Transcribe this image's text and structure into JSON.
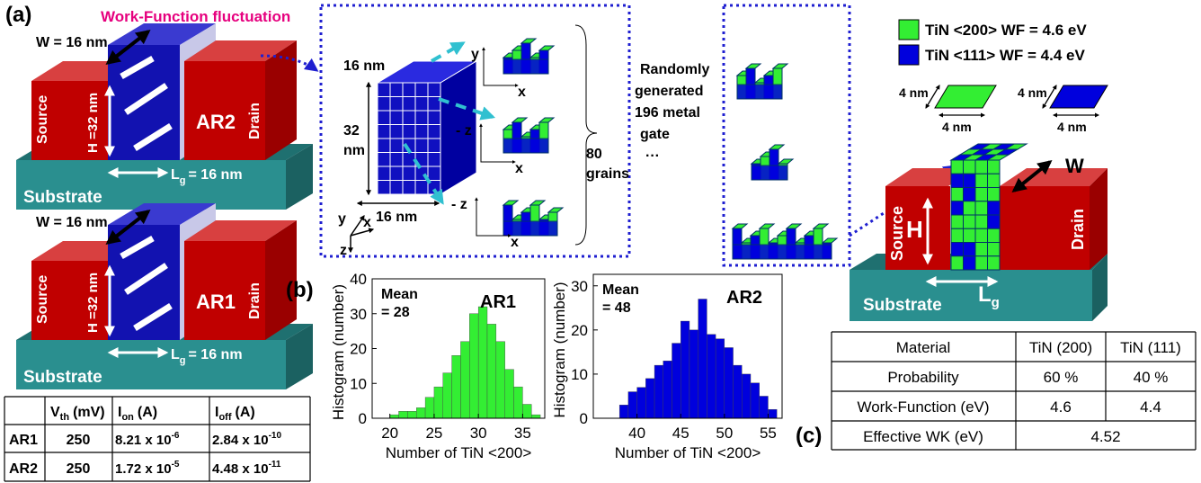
{
  "panel_a": {
    "label": "(a)",
    "title": "Work-Function fluctuation",
    "devices": [
      {
        "width": "W = 16 nm",
        "height": "H =32 nm",
        "source": "Source",
        "drain": "Drain",
        "name": "AR2",
        "substrate": "Substrate",
        "gate_length": {
          "symbol": "L",
          "subscript": "g",
          "text": "= 16 nm"
        }
      },
      {
        "width": "W = 16 nm",
        "height": "H =32 nm",
        "source": "Source",
        "drain": "Drain",
        "name": "AR1",
        "substrate": "Substrate",
        "gate_length": {
          "symbol": "L",
          "subscript": "g",
          "text": "= 16 nm"
        }
      }
    ],
    "table": {
      "header": [
        {
          "symbol": "V",
          "subscript": "th",
          "unit": "(mV)"
        },
        {
          "symbol": "I",
          "subscript": "on",
          "unit": "(A)"
        },
        {
          "symbol": "I",
          "subscript": "off",
          "unit": "(A)"
        }
      ],
      "rows": [
        {
          "name": "AR1",
          "vth": "250",
          "ion": {
            "base": "8.21 x 10",
            "exponent": "-6"
          },
          "ioff": {
            "base": "2.84 x 10",
            "exponent": "-10"
          }
        },
        {
          "name": "AR2",
          "vth": "250",
          "ion": {
            "base": "1.72 x 10",
            "exponent": "-5"
          },
          "ioff": {
            "base": "4.48 x 10",
            "exponent": "-11"
          }
        }
      ]
    }
  },
  "grain_model": {
    "width": "16 nm",
    "height": [
      "32",
      "nm"
    ],
    "depth": "16 nm",
    "axes": {
      "y": "y",
      "x": "x",
      "z": "z"
    },
    "grain_axes": [
      {
        "a": "y",
        "b": "x"
      },
      {
        "a": "- z",
        "b": "x"
      },
      {
        "a": "- z",
        "b": "x"
      }
    ],
    "grains": [
      "80",
      "grains"
    ],
    "description": [
      "Randomly",
      "generated",
      "196 metal",
      "gate"
    ],
    "ellipsis": "···"
  },
  "panel_b": {
    "label": "(b)"
  },
  "chart_data": [
    {
      "type": "histogram",
      "title": "AR1",
      "annotation": [
        "Mean",
        "= 28"
      ],
      "y_label": "Histogram (number)",
      "x_label": "Number of TiN <200>",
      "color": "#33ee33",
      "bins": [
        20,
        21,
        22,
        23,
        24,
        25,
        26,
        27,
        28,
        29,
        30,
        31,
        32,
        33,
        34,
        35,
        36,
        37
      ],
      "values": [
        1,
        2,
        2,
        3,
        6,
        9,
        13,
        18,
        22,
        30,
        32,
        27,
        22,
        14,
        9,
        4,
        1
      ],
      "xlim": [
        18,
        37.5
      ],
      "ylim": [
        0,
        40
      ],
      "xticks": [
        20,
        25,
        30,
        35
      ],
      "yticks": [
        0,
        10,
        20,
        30,
        40
      ]
    },
    {
      "type": "histogram",
      "title": "AR2",
      "annotation": [
        "Mean",
        "= 48"
      ],
      "y_label": "Histogram (number)",
      "x_label": "Number of TiN <200>",
      "color": "#0000dd",
      "bins": [
        38,
        39,
        40,
        41,
        42,
        43,
        44,
        45,
        46,
        47,
        48,
        49,
        50,
        51,
        52,
        53,
        54,
        55,
        56
      ],
      "values": [
        3,
        6,
        7,
        9,
        12,
        13,
        17,
        22,
        20,
        27,
        19,
        18,
        16,
        12,
        10,
        8,
        5,
        2
      ],
      "xlim": [
        35,
        56.6
      ],
      "ylim": [
        0,
        32.6
      ],
      "xticks": [
        40,
        45,
        50,
        55
      ],
      "yticks": [
        0,
        10,
        20,
        30
      ]
    }
  ],
  "panel_c": {
    "label": "(c)",
    "legend": [
      {
        "text": "TiN <200> WF = 4.6 eV",
        "color": "#33ee33"
      },
      {
        "text": "TiN <111> WF = 4.4 eV",
        "color": "#0000dd"
      }
    ],
    "tile_sizes": [
      "4 nm",
      "4 nm",
      "4 nm",
      "4 nm"
    ],
    "device": {
      "width": "W",
      "height": "H",
      "source": "Source",
      "drain": "Drain",
      "substrate": "Substrate",
      "gate_length": {
        "symbol": "L",
        "subscript": "g"
      }
    },
    "table": {
      "header": [
        "Material",
        "TiN (200)",
        "TiN (111)"
      ],
      "rows": [
        [
          "Probability",
          "60 %",
          "40 %"
        ],
        [
          "Work-Function (eV)",
          "4.6",
          "4.4"
        ],
        [
          "Effective WK (eV)",
          "4.52"
        ]
      ]
    }
  }
}
